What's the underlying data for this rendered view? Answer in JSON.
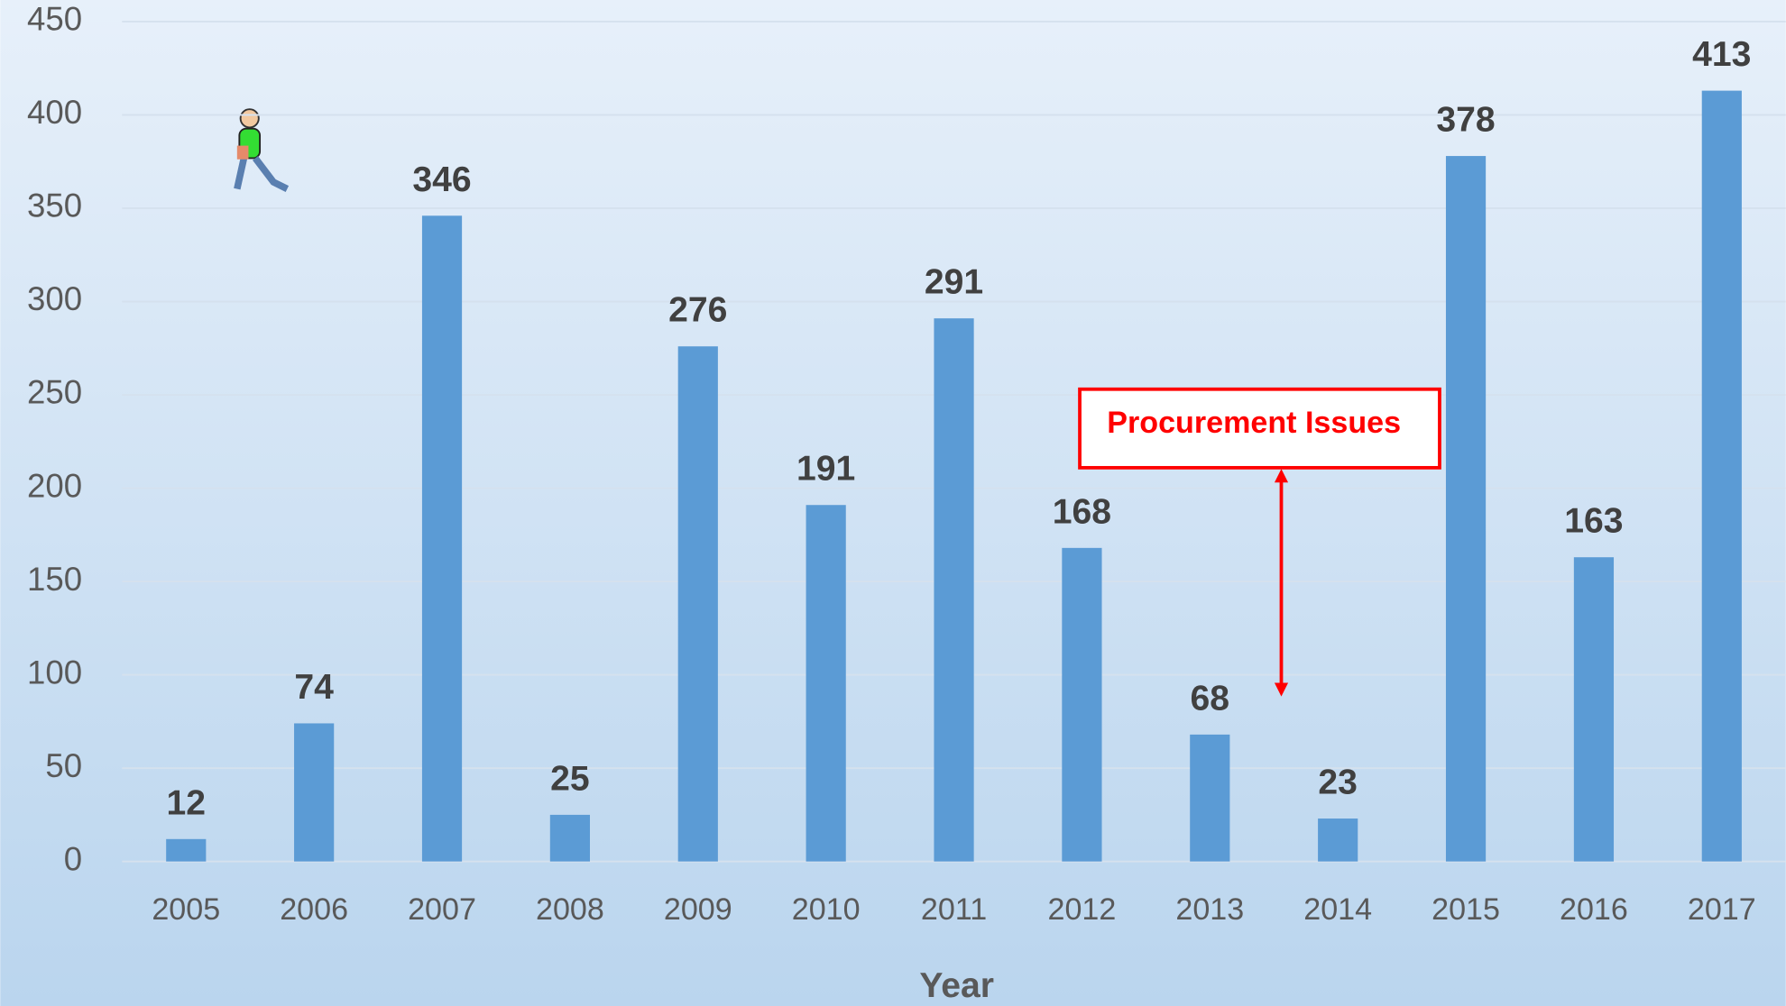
{
  "chart_data": {
    "type": "bar",
    "x_label": "Year",
    "categories": [
      "2005",
      "2006",
      "2007",
      "2008",
      "2009",
      "2010",
      "2011",
      "2012",
      "2013",
      "2014",
      "2015",
      "2016",
      "2017"
    ],
    "values": [
      12,
      74,
      346,
      25,
      276,
      191,
      291,
      168,
      68,
      23,
      378,
      163,
      413
    ],
    "color": "#5b9bd5",
    "ylim": [
      0,
      450
    ],
    "yticks": [
      0,
      50,
      100,
      150,
      200,
      250,
      300,
      350,
      400,
      450
    ],
    "grid": true,
    "annotation": "Procurement Issues"
  }
}
